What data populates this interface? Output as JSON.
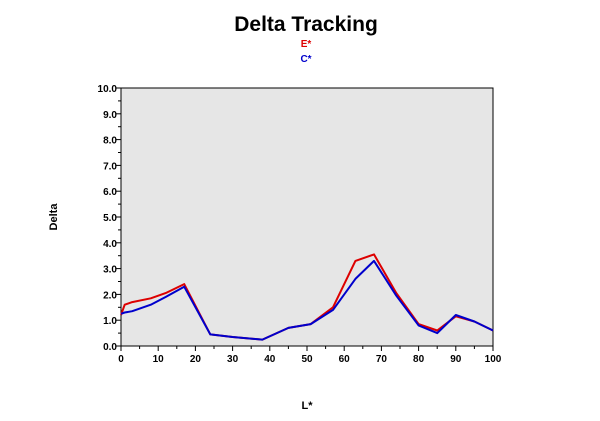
{
  "chart_data": {
    "type": "line",
    "title": "Delta Tracking",
    "xlabel": "L*",
    "ylabel": "Delta",
    "xlim": [
      0,
      100
    ],
    "ylim": [
      0,
      10
    ],
    "x_ticks": [
      0,
      10,
      20,
      30,
      40,
      50,
      60,
      70,
      80,
      90,
      100
    ],
    "x_tick_labels": [
      "0",
      "10",
      "20",
      "30",
      "40",
      "50",
      "60",
      "70",
      "80",
      "90",
      "100"
    ],
    "y_ticks": [
      0,
      1,
      2,
      3,
      4,
      5,
      6,
      7,
      8,
      9,
      10
    ],
    "y_tick_labels": [
      "0.0",
      "1.0",
      "2.0",
      "3.0",
      "4.0",
      "5.0",
      "6.0",
      "7.0",
      "8.0",
      "9.0",
      "10.0"
    ],
    "grid": false,
    "legend_position": "top-center",
    "plot_background": "#e6e6e6",
    "series": [
      {
        "name": "E*",
        "color": "#dd0000",
        "x": [
          0,
          1,
          3,
          8,
          12,
          17,
          24,
          30,
          38,
          45,
          51,
          57,
          63,
          68,
          74,
          80,
          85,
          90,
          95,
          100
        ],
        "y": [
          1.2,
          1.6,
          1.7,
          1.85,
          2.05,
          2.4,
          0.45,
          0.35,
          0.25,
          0.7,
          0.85,
          1.5,
          3.3,
          3.55,
          2.05,
          0.85,
          0.6,
          1.15,
          0.95,
          0.6
        ]
      },
      {
        "name": "C*",
        "color": "#0000cc",
        "x": [
          0,
          1,
          3,
          8,
          12,
          17,
          24,
          30,
          38,
          45,
          51,
          57,
          63,
          68,
          74,
          80,
          85,
          90,
          95,
          100
        ],
        "y": [
          1.25,
          1.3,
          1.35,
          1.6,
          1.9,
          2.3,
          0.45,
          0.35,
          0.25,
          0.7,
          0.85,
          1.4,
          2.6,
          3.3,
          1.95,
          0.8,
          0.5,
          1.2,
          0.95,
          0.6
        ]
      }
    ]
  }
}
